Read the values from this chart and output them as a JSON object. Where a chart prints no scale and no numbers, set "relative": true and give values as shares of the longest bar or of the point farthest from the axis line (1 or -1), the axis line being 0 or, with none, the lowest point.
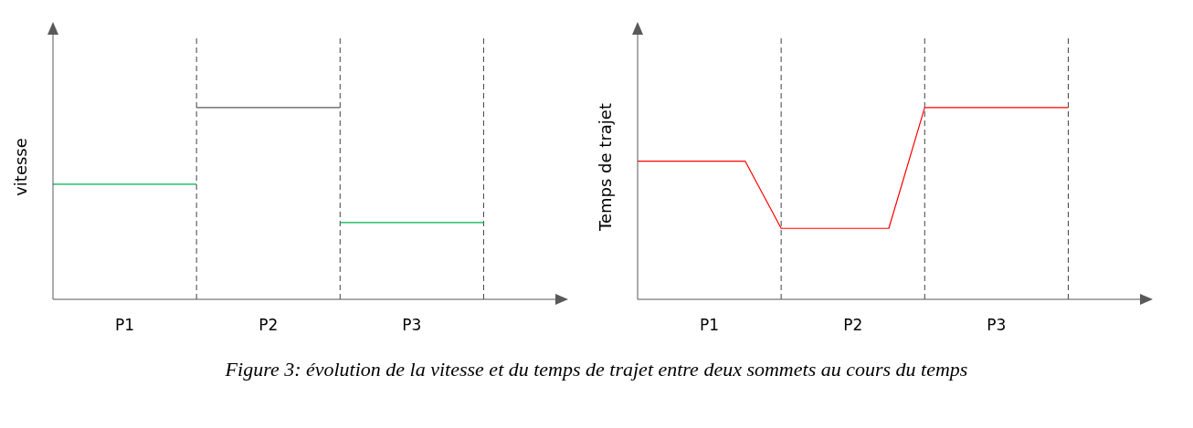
{
  "chart_data": [
    {
      "type": "line",
      "relative": true,
      "ylabel": "vitesse",
      "grid": "x",
      "categories": [
        null,
        null,
        "P1",
        null,
        null,
        null,
        "P2",
        null,
        null,
        null,
        "P3",
        null,
        null,
        null,
        null
      ],
      "series": [
        {
          "color": "#00b050",
          "values": [
            0.6,
            0.6,
            0.6,
            0.6,
            0.6,
            null,
            null,
            null,
            0.4,
            0.4,
            0.4,
            0.4,
            0.4,
            null,
            null
          ]
        },
        {
          "color": "#595959",
          "values": [
            null,
            null,
            null,
            null,
            1,
            1,
            1,
            1,
            1,
            null,
            null,
            null,
            null,
            null,
            null
          ]
        }
      ],
      "annotations": [
        "Figure 3: évolution de la vitesse et du temps de trajet entre deux sommets au cours du temps"
      ]
    },
    {
      "type": "line",
      "relative": true,
      "ylabel": "Temps de trajet",
      "grid": "x",
      "categories": [
        null,
        null,
        "P1",
        null,
        null,
        null,
        "P2",
        null,
        null,
        null,
        "P3",
        null,
        null,
        null,
        null
      ],
      "series": [
        {
          "color": "#ff0000",
          "values": [
            0.72,
            0.72,
            0.72,
            0.72,
            0.37,
            0.37,
            0.37,
            0.37,
            1,
            1,
            1,
            1,
            1,
            null,
            null
          ]
        }
      ]
    }
  ]
}
